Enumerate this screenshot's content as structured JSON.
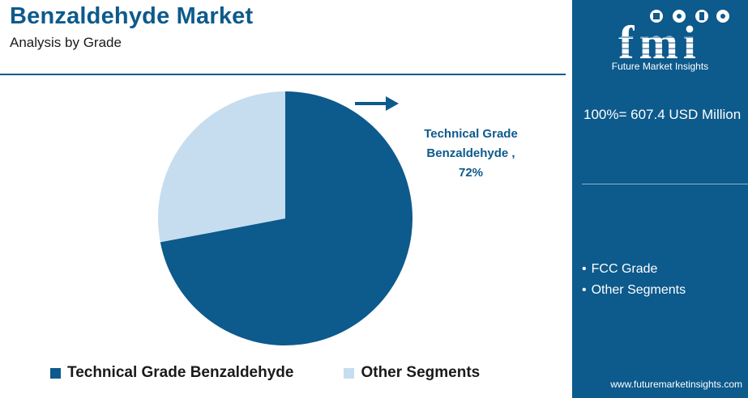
{
  "header": {
    "title": "Benzaldehyde Market",
    "subtitle": "Analysis by Grade"
  },
  "chart_data": {
    "type": "pie",
    "title": "Benzaldehyde Market",
    "subtitle": "Analysis by Grade",
    "slices": [
      {
        "label": "Technical Grade Benzaldehyde",
        "value": 72,
        "color": "#0d5a8c"
      },
      {
        "label": "Other Segments",
        "value": 28,
        "color": "#c6ddef"
      }
    ],
    "callout": {
      "line1": "Technical Grade",
      "line2": "Benzaldehyde ,",
      "line3": "72%"
    },
    "legend": {
      "placement": "bottom",
      "items": [
        {
          "label": "Technical Grade Benzaldehyde",
          "color": "#0d5a8c"
        },
        {
          "label": "Other Segments",
          "color": "#c6ddef"
        }
      ]
    }
  },
  "sidebar": {
    "logo_text": "fmi",
    "brand": "Future Market Insights",
    "total": "100%= 607.4 USD Million",
    "segments": [
      "FCC Grade",
      "Other Segments"
    ],
    "website": "www.futuremarketinsights.com"
  },
  "colors": {
    "primary": "#0d5a8c",
    "secondary": "#c6ddef",
    "panel_text": "#ffffff"
  }
}
